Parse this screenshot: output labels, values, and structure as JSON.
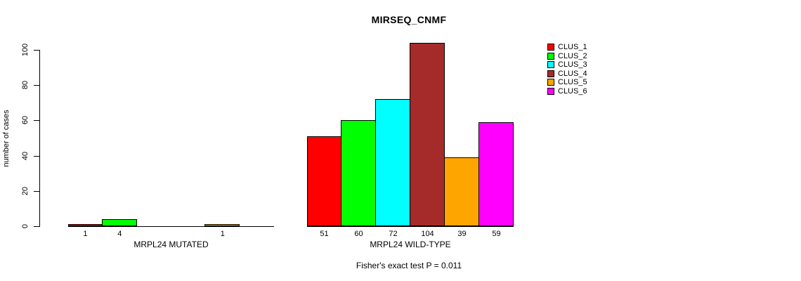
{
  "title": "MIRSEQ_CNMF",
  "y_axis_label": "number of cases",
  "annotation": "Fisher's exact test P = 0.011",
  "chart_data": {
    "type": "bar",
    "title": "MIRSEQ_CNMF",
    "xlabel": "",
    "ylabel": "number of cases",
    "ylim": [
      0,
      100
    ],
    "yticks": [
      0,
      20,
      40,
      60,
      80,
      100
    ],
    "grid": false,
    "legend_position": "right",
    "series": [
      {
        "name": "CLUS_1",
        "color": "#FF0000"
      },
      {
        "name": "CLUS_2",
        "color": "#00FF00"
      },
      {
        "name": "CLUS_3",
        "color": "#00FFFF"
      },
      {
        "name": "CLUS_4",
        "color": "#A52A2A"
      },
      {
        "name": "CLUS_5",
        "color": "#FFA500"
      },
      {
        "name": "CLUS_6",
        "color": "#FF00FF"
      }
    ],
    "groups": [
      {
        "label": "MRPL24 MUTATED",
        "values": [
          1,
          4,
          0,
          0,
          1,
          0
        ]
      },
      {
        "label": "MRPL24 WILD-TYPE",
        "values": [
          51,
          60,
          72,
          104,
          39,
          59
        ]
      }
    ],
    "annotation": "Fisher's exact test P = 0.011"
  }
}
